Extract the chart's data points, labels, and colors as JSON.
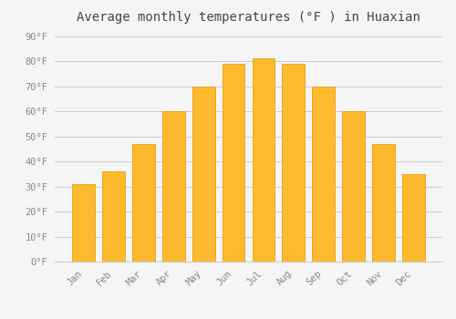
{
  "title": "Average monthly temperatures (°F ) in Huaxian",
  "months": [
    "Jan",
    "Feb",
    "Mar",
    "Apr",
    "May",
    "Jun",
    "Jul",
    "Aug",
    "Sep",
    "Oct",
    "Nov",
    "Dec"
  ],
  "values": [
    31,
    36,
    47,
    60,
    70,
    79,
    81,
    79,
    70,
    60,
    47,
    35
  ],
  "bar_color": "#FDBA2E",
  "bar_edge_color": "#E8A010",
  "background_color": "#F5F5F5",
  "grid_color": "#CCCCCC",
  "ylim": [
    0,
    93
  ],
  "yticks": [
    0,
    10,
    20,
    30,
    40,
    50,
    60,
    70,
    80,
    90
  ],
  "ytick_labels": [
    "0°F",
    "10°F",
    "20°F",
    "30°F",
    "40°F",
    "50°F",
    "60°F",
    "70°F",
    "80°F",
    "90°F"
  ],
  "title_fontsize": 10,
  "tick_fontsize": 7.5,
  "tick_color": "#888888",
  "spine_color": "#CCCCCC",
  "title_color": "#444444"
}
